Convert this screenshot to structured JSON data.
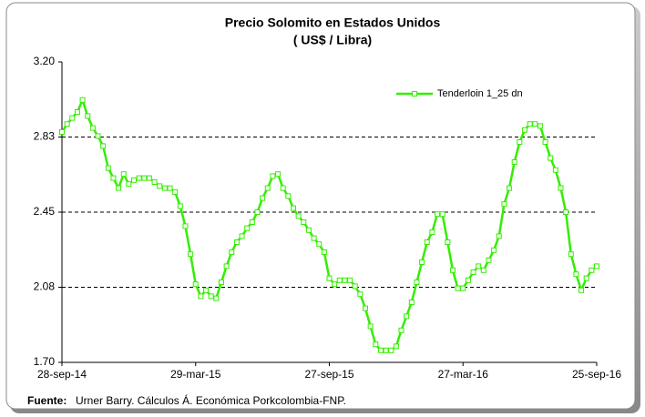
{
  "chart_data": {
    "type": "line",
    "title": "Precio Solomito en Estados Unidos",
    "subtitle": "( US$ / Libra)",
    "source_label": "Fuente:",
    "source": "Urner Barry. Cálculos Á. Económica Porkcolombia-FNP.",
    "categories": [
      "28-sep-14",
      null,
      null,
      null,
      null,
      null,
      null,
      null,
      null,
      null,
      null,
      null,
      null,
      null,
      null,
      null,
      null,
      null,
      null,
      null,
      null,
      null,
      null,
      null,
      null,
      null,
      "29-mar-15",
      null,
      null,
      null,
      null,
      null,
      null,
      null,
      null,
      null,
      null,
      null,
      null,
      null,
      null,
      null,
      null,
      null,
      null,
      null,
      null,
      null,
      null,
      null,
      null,
      null,
      "27-sep-15",
      null,
      null,
      null,
      null,
      null,
      null,
      null,
      null,
      null,
      null,
      null,
      null,
      null,
      null,
      null,
      null,
      null,
      null,
      null,
      null,
      null,
      null,
      null,
      null,
      null,
      "27-mar-16",
      null,
      null,
      null,
      null,
      null,
      null,
      null,
      null,
      null,
      null,
      null,
      null,
      null,
      null,
      null,
      null,
      null,
      null,
      null,
      null,
      null,
      null,
      null,
      null,
      null,
      "25-sep-16"
    ],
    "series": [
      {
        "name": "Tenderloin 1_25 dn",
        "color": "#33ee00",
        "values": [
          2.85,
          2.89,
          2.92,
          2.95,
          3.01,
          2.93,
          2.87,
          2.83,
          2.78,
          2.67,
          2.62,
          2.57,
          2.64,
          2.59,
          2.61,
          2.62,
          2.62,
          2.62,
          2.6,
          2.58,
          2.57,
          2.57,
          2.55,
          2.48,
          2.38,
          2.24,
          2.09,
          2.03,
          2.06,
          2.03,
          2.02,
          2.1,
          2.18,
          2.25,
          2.3,
          2.33,
          2.37,
          2.4,
          2.45,
          2.52,
          2.57,
          2.63,
          2.64,
          2.57,
          2.53,
          2.47,
          2.43,
          2.4,
          2.36,
          2.32,
          2.29,
          2.25,
          2.12,
          2.09,
          2.11,
          2.11,
          2.11,
          2.08,
          2.04,
          1.97,
          1.88,
          1.79,
          1.76,
          1.76,
          1.76,
          1.78,
          1.86,
          1.93,
          2.0,
          2.1,
          2.2,
          2.3,
          2.35,
          2.44,
          2.44,
          2.3,
          2.16,
          2.07,
          2.07,
          2.11,
          2.15,
          2.18,
          2.16,
          2.21,
          2.26,
          2.33,
          2.49,
          2.57,
          2.7,
          2.8,
          2.86,
          2.89,
          2.89,
          2.88,
          2.8,
          2.72,
          2.66,
          2.57,
          2.45,
          2.24,
          2.14,
          2.06,
          2.12,
          2.16,
          2.18
        ]
      }
    ],
    "ylim": [
      1.7,
      3.2
    ],
    "yticks": [
      {
        "value": 1.7,
        "label": "1.70"
      },
      {
        "value": 2.075,
        "label": "2.08"
      },
      {
        "value": 2.45,
        "label": "2.45"
      },
      {
        "value": 2.825,
        "label": "2.83"
      },
      {
        "value": 3.2,
        "label": "3.20"
      }
    ],
    "grid": true,
    "legend": "top-right"
  }
}
